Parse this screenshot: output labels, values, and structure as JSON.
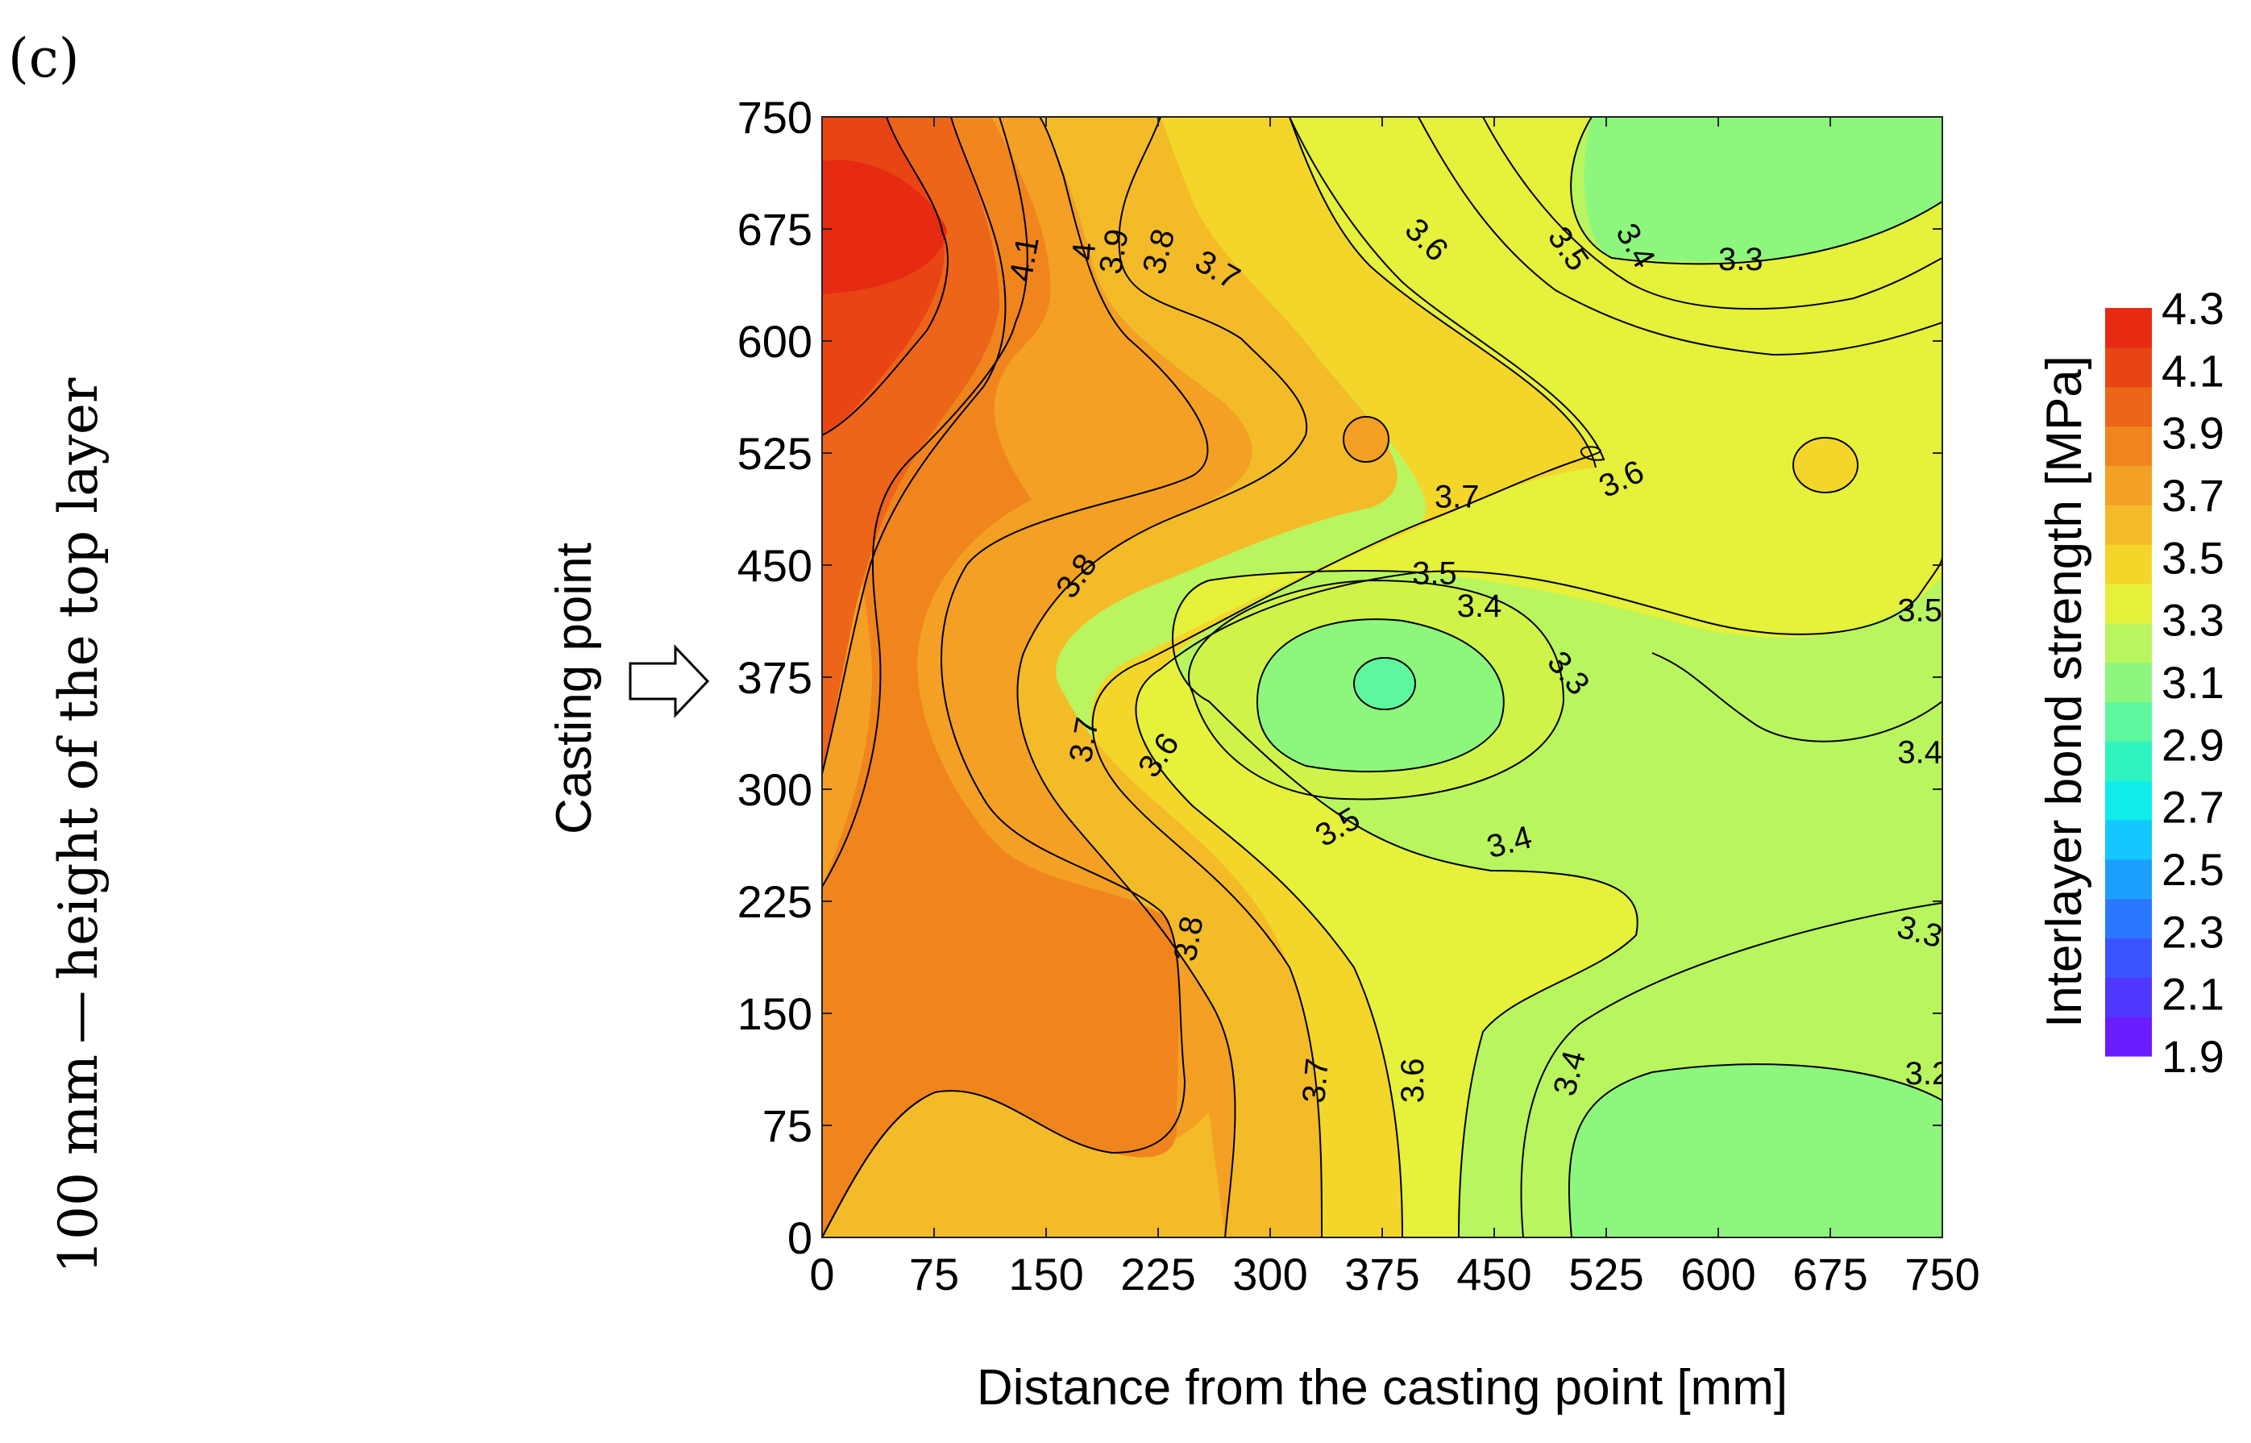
{
  "panel_label": "(c)",
  "side_caption": "100 mm — height of the top layer",
  "casting_marker": "Casting point",
  "chart_data": {
    "type": "heatmap",
    "subtype": "filled-contour",
    "title": "",
    "xlabel": "Distance from the casting point [mm]",
    "ylabel": "Casting point",
    "xlim": [
      0,
      750
    ],
    "ylim": [
      0,
      750
    ],
    "x_ticks": [
      0,
      75,
      150,
      225,
      300,
      375,
      450,
      525,
      600,
      675,
      750
    ],
    "y_ticks": [
      0,
      75,
      150,
      225,
      300,
      375,
      450,
      525,
      600,
      675,
      750
    ],
    "casting_point_y": 375,
    "colorbar": {
      "label": "Interlayer bond strength [MPa]",
      "min": 1.9,
      "max": 4.3,
      "tick_labels": [
        "4.3",
        "4.1",
        "3.9",
        "3.7",
        "3.5",
        "3.3",
        "3.1",
        "2.9",
        "2.7",
        "2.5",
        "2.3",
        "2.1",
        "1.9"
      ],
      "colors": [
        "#6a1cff",
        "#4f38ff",
        "#3a55ff",
        "#2a78ff",
        "#1aa0ff",
        "#12c8ff",
        "#10ecea",
        "#2ef5c0",
        "#5ef79e",
        "#8cf77c",
        "#b9f55e",
        "#e5f13a",
        "#f4d62a",
        "#f4bb28",
        "#f3a024",
        "#f0851e",
        "#ec6518",
        "#e84414",
        "#e62b12"
      ]
    },
    "contour_lines": [
      {
        "level": 4.1,
        "points": [
          [
            0,
            0.61
          ],
          [
            0.06,
            0.45
          ],
          [
            0.09,
            0.5
          ],
          [
            0.15,
            0.6
          ],
          [
            0.19,
            0.71
          ],
          [
            0.19,
            0.8
          ],
          [
            0.2,
            0.95
          ],
          [
            0.2,
            1
          ]
        ],
        "label_at": [
          0.14,
          0.6
        ],
        "angle": -80
      },
      {
        "level": 4.0,
        "points": [
          [
            0,
            0.97
          ],
          [
            0.03,
            0.82
          ],
          [
            0.06,
            0.69
          ],
          [
            0.12,
            0.59
          ],
          [
            0.17,
            0.6
          ],
          [
            0.21,
            0.68
          ],
          [
            0.23,
            0.78
          ],
          [
            0.26,
            0.92
          ],
          [
            0.28,
            1
          ]
        ],
        "label_at": [
          0.26,
          0.65
        ],
        "angle": -85
      },
      {
        "level": 3.9,
        "points": [
          [
            0.31,
            1
          ],
          [
            0.31,
            0.9
          ],
          [
            0.3,
            0.8
          ],
          [
            0.28,
            0.7
          ],
          [
            0.24,
            0.6
          ],
          [
            0.2,
            0.5
          ],
          [
            0.22,
            0.4
          ],
          [
            0.3,
            0.3
          ],
          [
            0.38,
            0.2
          ],
          [
            0.5,
            0.1
          ],
          [
            0.7,
            0.08
          ],
          [
            0.8,
            0.06
          ],
          [
            0.95,
            0.05
          ],
          [
            1,
            0.05
          ]
        ],
        "label_at": [
          0.3,
          0.66
        ],
        "angle": -85
      },
      {
        "level": 3.8,
        "points": [
          [
            0.42,
            1
          ],
          [
            0.4,
            0.86
          ],
          [
            0.36,
            0.75
          ],
          [
            0.3,
            0.6
          ],
          [
            0.28,
            0.5
          ],
          [
            0.3,
            0.4
          ],
          [
            0.38,
            0.3
          ],
          [
            0.48,
            0.2
          ],
          [
            0.52,
            0.12
          ],
          [
            0.6,
            0.1
          ],
          [
            0.66,
            0.07
          ],
          [
            0.7,
            0.08
          ],
          [
            0.78,
            0.12
          ],
          [
            0.85,
            0.2
          ],
          [
            0.9,
            0.3
          ],
          [
            0.94,
            0.42
          ],
          [
            0.98,
            0.5
          ],
          [
            1,
            0.52
          ]
        ],
        "label_at": [
          0.35,
          0.63
        ],
        "angle": -80
      },
      {
        "level": 3.7,
        "points": [
          [
            0.88,
            1
          ],
          [
            0.85,
            0.9
          ],
          [
            0.8,
            0.8
          ],
          [
            0.74,
            0.72
          ],
          [
            0.69,
            0.65
          ],
          [
            0.7,
            0.55
          ],
          [
            0.82,
            0.45
          ],
          [
            0.98,
            0.36
          ],
          [
            1,
            0.34
          ]
        ],
        "label_at": [
          0.56,
          0.67
        ],
        "angle": 15
      },
      {
        "level": 3.6,
        "points": [
          [
            0.94,
            1
          ],
          [
            0.9,
            0.9
          ],
          [
            0.83,
            0.8
          ],
          [
            0.75,
            0.7
          ],
          [
            0.71,
            0.62
          ],
          [
            0.72,
            0.55
          ],
          [
            0.78,
            0.42
          ],
          [
            0.88,
            0.32
          ],
          [
            0.98,
            0.22
          ],
          [
            1,
            0.2
          ]
        ],
        "label_at": [
          0.71,
          0.62
        ],
        "angle": 40
      },
      {
        "level": 3.5,
        "points": [
          [
            0.98,
            1
          ],
          [
            0.95,
            0.9
          ],
          [
            0.88,
            0.8
          ],
          [
            0.8,
            0.72
          ],
          [
            0.76,
            0.66
          ],
          [
            0.8,
            0.55
          ],
          [
            0.9,
            0.45
          ],
          [
            0.99,
            0.35
          ],
          [
            1,
            0.33
          ]
        ],
        "label_at": [
          0.85,
          0.73
        ],
        "angle": 55
      },
      {
        "level": 3.4,
        "points": [
          [
            1,
            0.5
          ],
          [
            0.97,
            0.42
          ],
          [
            0.9,
            0.32
          ],
          [
            0.83,
            0.25
          ],
          [
            0.77,
            0.18
          ],
          [
            0.7,
            0.15
          ],
          [
            0.65,
            0.12
          ],
          [
            0.6,
            0.08
          ],
          [
            0.55,
            0.05
          ],
          [
            0.5,
            0.03
          ],
          [
            0.45,
            0.0
          ]
        ],
        "label_at": [
          0.73,
          0.72
        ],
        "angle": -55
      },
      {
        "level": 3.3,
        "points": [
          [
            0.63,
            1
          ],
          [
            0.66,
            0.86
          ],
          [
            0.74,
            0.8
          ],
          [
            0.86,
            0.78
          ],
          [
            0.96,
            0.8
          ],
          [
            1,
            0.83
          ]
        ],
        "label_at": [
          0.74,
          0.77
        ],
        "angle": 0
      }
    ],
    "contour_labels": [
      {
        "text": "4.1",
        "x": 135,
        "y": 655,
        "angle": -80
      },
      {
        "text": "4",
        "x": 175,
        "y": 660,
        "angle": -85
      },
      {
        "text": "3.9",
        "x": 195,
        "y": 660,
        "angle": -80
      },
      {
        "text": "3.8",
        "x": 225,
        "y": 660,
        "angle": -75
      },
      {
        "text": "3.7",
        "x": 265,
        "y": 648,
        "angle": 30
      },
      {
        "text": "3.6",
        "x": 405,
        "y": 668,
        "angle": 45
      },
      {
        "text": "3.5",
        "x": 500,
        "y": 662,
        "angle": 55
      },
      {
        "text": "3.4",
        "x": 545,
        "y": 664,
        "angle": 60
      },
      {
        "text": "3.3",
        "x": 615,
        "y": 655,
        "angle": 0
      },
      {
        "text": "3.7",
        "x": 425,
        "y": 496,
        "angle": 0
      },
      {
        "text": "3.6",
        "x": 535,
        "y": 508,
        "angle": -25
      },
      {
        "text": "3.8",
        "x": 170,
        "y": 443,
        "angle": -55
      },
      {
        "text": "3.5",
        "x": 410,
        "y": 445,
        "angle": 0
      },
      {
        "text": "3.4",
        "x": 440,
        "y": 423,
        "angle": 0
      },
      {
        "text": "3.3",
        "x": 500,
        "y": 378,
        "angle": 50
      },
      {
        "text": "3.5",
        "x": 735,
        "y": 420,
        "angle": 0
      },
      {
        "text": "3.4",
        "x": 735,
        "y": 325,
        "angle": 0
      },
      {
        "text": "3.7",
        "x": 175,
        "y": 333,
        "angle": -80
      },
      {
        "text": "3.6",
        "x": 225,
        "y": 323,
        "angle": -55
      },
      {
        "text": "3.5",
        "x": 345,
        "y": 275,
        "angle": -30
      },
      {
        "text": "3.4",
        "x": 460,
        "y": 265,
        "angle": -15
      },
      {
        "text": "3.8",
        "x": 245,
        "y": 200,
        "angle": -80
      },
      {
        "text": "3.3",
        "x": 735,
        "y": 205,
        "angle": 15
      },
      {
        "text": "3.7",
        "x": 330,
        "y": 105,
        "angle": -85
      },
      {
        "text": "3.6",
        "x": 395,
        "y": 105,
        "angle": -90
      },
      {
        "text": "3.4",
        "x": 500,
        "y": 110,
        "angle": -75
      },
      {
        "text": "3.2",
        "x": 740,
        "y": 110,
        "angle": 0
      }
    ]
  }
}
